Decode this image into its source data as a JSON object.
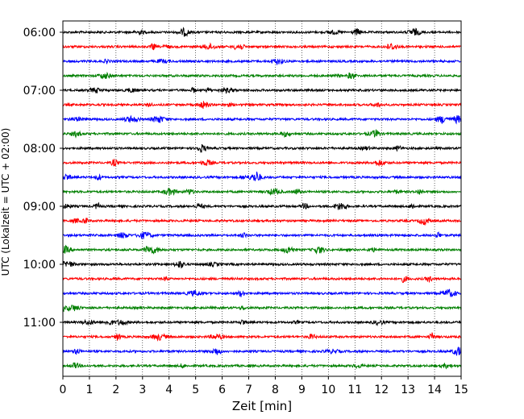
{
  "chart_data": {
    "type": "line",
    "xlabel": "Zeit  [min]",
    "ylabel": "UTC (Lokalzeit = UTC + 02:00)",
    "x_range": [
      0,
      15
    ],
    "x_ticks": [
      0,
      1,
      2,
      3,
      4,
      5,
      6,
      7,
      8,
      9,
      10,
      11,
      12,
      13,
      14,
      15
    ],
    "y_tick_labels": [
      "06:00",
      "07:00",
      "08:00",
      "09:00",
      "10:00",
      "11:00"
    ],
    "grid": "vertical dotted",
    "trace_colors": [
      "#000000",
      "#ff0000",
      "#0000ff",
      "#008000"
    ],
    "trace_start_times": [
      "06:00",
      "06:15",
      "06:30",
      "06:45",
      "07:00",
      "07:15",
      "07:30",
      "07:45",
      "08:00",
      "08:15",
      "08:30",
      "08:45",
      "09:00",
      "09:15",
      "09:30",
      "09:45",
      "10:00",
      "10:15",
      "10:30",
      "10:45",
      "11:00",
      "11:15",
      "11:30",
      "11:45"
    ]
  }
}
